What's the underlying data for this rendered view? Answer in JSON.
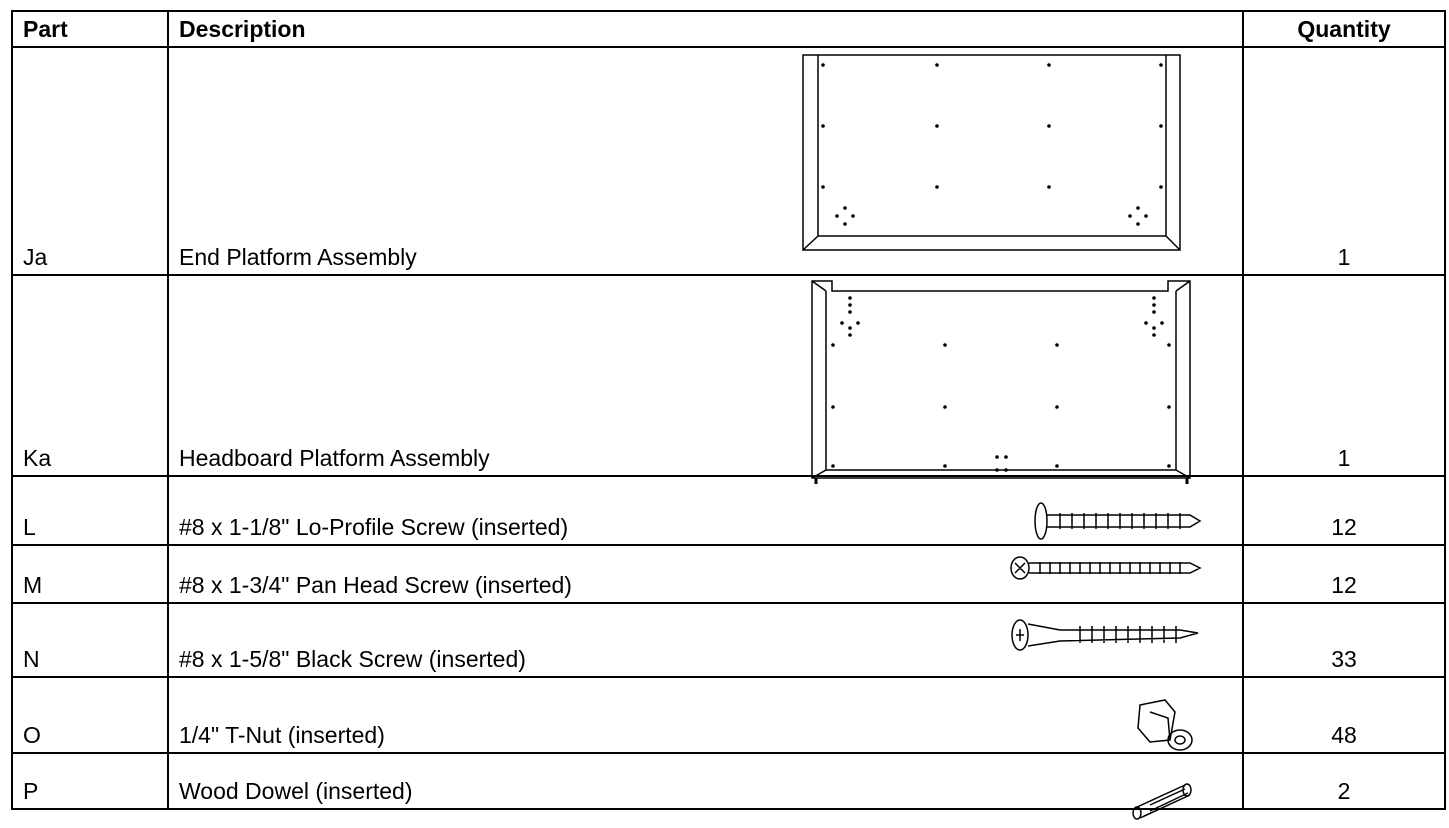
{
  "table": {
    "header": [
      "Part",
      "Description",
      "Quantity"
    ],
    "rows": [
      [
        "Ja",
        "End Platform Assembly",
        "1"
      ],
      [
        "Ka",
        "Headboard Platform Assembly",
        "1"
      ],
      [
        "L",
        "#8 x 1-1/8\" Lo-Profile Screw (inserted)",
        "12"
      ],
      [
        "M",
        "#8 x 1-3/4\" Pan Head Screw (inserted)",
        "12"
      ],
      [
        "N",
        "#8 x 1-5/8\" Black Screw (inserted)",
        "33"
      ],
      [
        "O",
        "1/4\" T-Nut (inserted)",
        "48"
      ],
      [
        "P",
        "Wood Dowel (inserted)",
        "2"
      ]
    ]
  }
}
